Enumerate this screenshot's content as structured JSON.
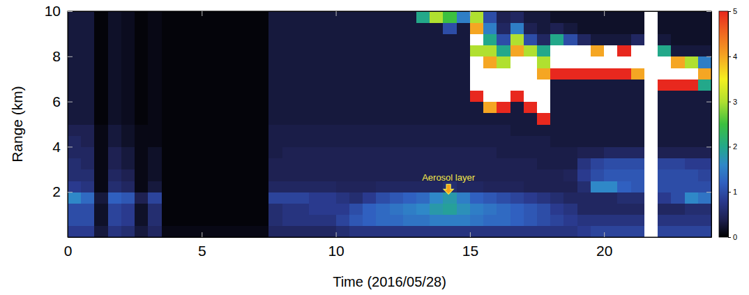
{
  "chart_data": {
    "type": "heatmap",
    "xlabel": "Time (2016/05/28)",
    "ylabel": "Range (km)",
    "xlim": [
      0,
      24
    ],
    "xticks": [
      0,
      5,
      10,
      15,
      20
    ],
    "ylim": [
      0,
      10
    ],
    "yticks": [
      2,
      4,
      6,
      8,
      10
    ],
    "colorbar": {
      "range": [
        0,
        5
      ],
      "ticks": [
        0,
        1,
        2,
        3,
        4,
        5
      ]
    },
    "annotations": [
      {
        "text": "Aerosol layer",
        "x": 14.2,
        "y": 1.9
      }
    ],
    "x": [
      0.25,
      0.75,
      1.25,
      1.75,
      2.25,
      2.75,
      3.25,
      3.75,
      4.25,
      4.75,
      5.25,
      5.75,
      6.25,
      6.75,
      7.25,
      7.75,
      8.25,
      8.75,
      9.25,
      9.75,
      10.25,
      10.75,
      11.25,
      11.75,
      12.25,
      12.75,
      13.25,
      13.75,
      14.25,
      14.75,
      15.25,
      15.75,
      16.25,
      16.75,
      17.25,
      17.75,
      18.25,
      18.75,
      19.25,
      19.75,
      20.25,
      20.75,
      21.25,
      21.75,
      22.25,
      22.75,
      23.25,
      23.75
    ],
    "y": [
      0.25,
      0.75,
      1.25,
      1.75,
      2.25,
      2.75,
      3.25,
      3.75,
      4.25,
      4.75,
      5.25,
      5.75,
      6.25,
      6.75,
      7.25,
      7.75,
      8.25,
      8.75,
      9.25,
      9.75
    ],
    "z": [
      [
        0.8,
        1.0,
        1.0,
        1.6,
        0.8,
        0.6,
        0.6,
        0.5,
        0.5,
        0.4,
        0.3,
        0.3,
        0.3,
        0.3,
        0.3,
        0.3,
        0.3,
        0.3,
        0.3,
        0.3
      ],
      [
        0.8,
        1.0,
        1.0,
        1.3,
        0.7,
        0.6,
        0.5,
        0.5,
        0.4,
        0.4,
        0.3,
        0.3,
        0.3,
        0.3,
        0.3,
        0.3,
        0.3,
        0.3,
        0.3,
        0.3
      ],
      [
        0.3,
        0.2,
        0.2,
        0.3,
        0.1,
        0.1,
        0.1,
        0.1,
        0.1,
        0.1,
        0.05,
        0.05,
        0.05,
        0.05,
        0.05,
        0.05,
        0.05,
        0.05,
        0.05,
        0.05
      ],
      [
        0.7,
        0.9,
        0.9,
        1.2,
        0.6,
        0.5,
        0.4,
        0.4,
        0.3,
        0.3,
        0.2,
        0.2,
        0.2,
        0.2,
        0.2,
        0.2,
        0.2,
        0.2,
        0.2,
        0.2
      ],
      [
        0.6,
        0.8,
        0.8,
        1.1,
        0.5,
        0.4,
        0.3,
        0.3,
        0.2,
        0.2,
        0.15,
        0.15,
        0.15,
        0.15,
        0.15,
        0.15,
        0.15,
        0.15,
        0.15,
        0.15
      ],
      [
        0.3,
        0.2,
        0.2,
        0.4,
        0.1,
        0.1,
        0.1,
        0.1,
        0.1,
        0.1,
        0.05,
        0.05,
        0.05,
        0.05,
        0.05,
        0.05,
        0.05,
        0.05,
        0.05,
        0.05
      ],
      [
        0.5,
        0.6,
        0.6,
        0.9,
        0.3,
        0.2,
        0.2,
        0.2,
        0.1,
        0.1,
        0.1,
        0.1,
        0.1,
        0.1,
        0.1,
        0.1,
        0.1,
        0.1,
        0.1,
        0.1
      ],
      [
        0.1,
        0.05,
        0.05,
        0.05,
        0.05,
        0.05,
        0.05,
        0.05,
        0.05,
        0.05,
        0.05,
        0.05,
        0.05,
        0.05,
        0.05,
        0.05,
        0.05,
        0.05,
        0.05,
        0.05
      ],
      [
        0.1,
        0.05,
        0.05,
        0.05,
        0.05,
        0.05,
        0.05,
        0.05,
        0.05,
        0.05,
        0.05,
        0.05,
        0.05,
        0.05,
        0.05,
        0.05,
        0.05,
        0.05,
        0.05,
        0.05
      ],
      [
        0.1,
        0.05,
        0.05,
        0.05,
        0.05,
        0.05,
        0.05,
        0.05,
        0.05,
        0.05,
        0.05,
        0.05,
        0.05,
        0.05,
        0.05,
        0.05,
        0.05,
        0.05,
        0.05,
        0.05
      ],
      [
        0.1,
        0.05,
        0.05,
        0.05,
        0.05,
        0.05,
        0.05,
        0.05,
        0.05,
        0.05,
        0.05,
        0.05,
        0.05,
        0.05,
        0.05,
        0.05,
        0.05,
        0.05,
        0.05,
        0.05
      ],
      [
        0.1,
        0.05,
        0.05,
        0.05,
        0.05,
        0.05,
        0.05,
        0.05,
        0.05,
        0.05,
        0.05,
        0.05,
        0.05,
        0.05,
        0.05,
        0.05,
        0.05,
        0.05,
        0.05,
        0.05
      ],
      [
        0.1,
        0.05,
        0.05,
        0.05,
        0.05,
        0.05,
        0.05,
        0.05,
        0.05,
        0.05,
        0.05,
        0.05,
        0.05,
        0.05,
        0.05,
        0.05,
        0.05,
        0.05,
        0.05,
        0.05
      ],
      [
        0.1,
        0.05,
        0.05,
        0.05,
        0.05,
        0.05,
        0.05,
        0.05,
        0.05,
        0.05,
        0.05,
        0.05,
        0.05,
        0.05,
        0.05,
        0.05,
        0.05,
        0.05,
        0.05,
        0.05
      ],
      [
        0.1,
        0.05,
        0.05,
        0.05,
        0.05,
        0.05,
        0.05,
        0.05,
        0.05,
        0.05,
        0.05,
        0.05,
        0.05,
        0.05,
        0.05,
        0.05,
        0.05,
        0.05,
        0.05,
        0.05
      ],
      [
        0.5,
        0.6,
        0.6,
        0.9,
        0.5,
        0.4,
        0.4,
        0.35,
        0.35,
        0.35,
        0.3,
        0.3,
        0.3,
        0.3,
        0.3,
        0.3,
        0.3,
        0.3,
        0.3,
        0.3
      ],
      [
        0.5,
        0.7,
        0.7,
        0.9,
        0.5,
        0.4,
        0.4,
        0.4,
        0.35,
        0.35,
        0.3,
        0.3,
        0.3,
        0.3,
        0.3,
        0.3,
        0.3,
        0.3,
        0.3,
        0.3
      ],
      [
        0.5,
        0.7,
        0.7,
        0.9,
        0.5,
        0.4,
        0.4,
        0.4,
        0.35,
        0.35,
        0.3,
        0.3,
        0.3,
        0.3,
        0.3,
        0.3,
        0.3,
        0.3,
        0.3,
        0.3
      ],
      [
        0.5,
        0.7,
        0.8,
        0.8,
        0.5,
        0.4,
        0.4,
        0.4,
        0.35,
        0.35,
        0.3,
        0.3,
        0.3,
        0.3,
        0.3,
        0.3,
        0.3,
        0.3,
        0.3,
        0.3
      ],
      [
        0.5,
        0.7,
        0.8,
        0.8,
        0.5,
        0.4,
        0.4,
        0.4,
        0.35,
        0.35,
        0.3,
        0.3,
        0.3,
        0.3,
        0.3,
        0.3,
        0.3,
        0.3,
        0.3,
        0.3
      ],
      [
        0.6,
        0.9,
        0.8,
        0.7,
        0.45,
        0.4,
        0.4,
        0.4,
        0.35,
        0.35,
        0.3,
        0.3,
        0.3,
        0.3,
        0.3,
        0.3,
        0.3,
        0.3,
        0.3,
        0.3
      ],
      [
        0.7,
        1.1,
        1.0,
        0.6,
        0.45,
        0.4,
        0.4,
        0.4,
        0.35,
        0.35,
        0.3,
        0.3,
        0.3,
        0.3,
        0.3,
        0.3,
        0.3,
        0.3,
        0.3,
        0.3
      ],
      [
        0.7,
        1.2,
        1.2,
        0.8,
        0.45,
        0.4,
        0.4,
        0.4,
        0.35,
        0.35,
        0.3,
        0.3,
        0.3,
        0.3,
        0.3,
        0.3,
        0.3,
        0.3,
        0.3,
        0.3
      ],
      [
        0.7,
        1.3,
        1.3,
        1.0,
        0.5,
        0.4,
        0.4,
        0.4,
        0.35,
        0.35,
        0.3,
        0.3,
        0.3,
        0.3,
        0.3,
        0.3,
        0.3,
        0.3,
        0.3,
        0.3
      ],
      [
        0.7,
        1.3,
        1.4,
        1.1,
        0.5,
        0.4,
        0.4,
        0.4,
        0.35,
        0.35,
        0.3,
        0.3,
        0.3,
        0.3,
        0.3,
        0.3,
        0.3,
        0.3,
        0.3,
        0.3
      ],
      [
        0.7,
        1.4,
        1.5,
        1.2,
        0.5,
        0.4,
        0.4,
        0.4,
        0.35,
        0.35,
        0.3,
        0.3,
        0.3,
        0.3,
        0.3,
        0.3,
        0.3,
        0.3,
        0.3,
        0.3
      ],
      [
        0.7,
        1.4,
        1.6,
        1.3,
        0.5,
        0.4,
        0.4,
        0.4,
        0.35,
        0.35,
        0.3,
        0.3,
        0.3,
        0.3,
        0.3,
        0.3,
        0.3,
        0.3,
        0.3,
        2.0
      ],
      [
        0.7,
        1.5,
        1.8,
        1.6,
        0.5,
        0.4,
        0.4,
        0.4,
        0.35,
        0.35,
        0.3,
        0.3,
        0.3,
        0.3,
        0.3,
        0.3,
        0.3,
        0.3,
        0.3,
        3.0
      ],
      [
        0.7,
        1.5,
        1.9,
        1.8,
        0.6,
        0.4,
        0.4,
        0.4,
        0.35,
        0.35,
        0.3,
        0.3,
        0.3,
        0.3,
        0.3,
        0.3,
        0.3,
        0.3,
        1.0,
        2.5
      ],
      [
        0.7,
        1.5,
        1.7,
        1.5,
        0.5,
        0.4,
        0.4,
        0.4,
        0.35,
        0.35,
        0.3,
        0.3,
        0.3,
        0.3,
        0.3,
        0.3,
        0.3,
        0.3,
        0.3,
        1.5
      ],
      [
        0.7,
        1.4,
        1.5,
        1.2,
        0.5,
        0.4,
        0.4,
        0.4,
        0.35,
        0.35,
        0.3,
        0.3,
        5,
        6,
        6,
        6,
        3,
        6,
        4,
        3
      ],
      [
        0.7,
        1.3,
        1.4,
        1.1,
        0.45,
        0.4,
        0.4,
        0.4,
        0.35,
        0.35,
        0.3,
        4,
        6,
        6,
        6,
        4,
        3,
        2,
        1.5,
        1
      ],
      [
        0.7,
        1.3,
        1.3,
        1.0,
        0.45,
        0.4,
        0.4,
        0.35,
        0.35,
        0.35,
        0.3,
        5,
        6,
        6,
        6,
        3,
        2,
        1,
        0.5,
        0.4
      ],
      [
        0.7,
        1.2,
        1.2,
        0.9,
        0.45,
        0.4,
        0.4,
        0.35,
        0.35,
        0.3,
        0.3,
        0.3,
        5,
        6,
        6,
        6,
        4,
        3,
        1.5,
        0.5
      ],
      [
        0.7,
        1.1,
        1.1,
        0.8,
        0.4,
        0.4,
        0.4,
        0.35,
        0.35,
        0.3,
        0.3,
        5,
        6,
        6,
        6,
        6,
        3,
        1,
        0.4,
        0.3
      ],
      [
        0.7,
        1.0,
        1.0,
        0.7,
        0.4,
        0.4,
        0.35,
        0.35,
        0.35,
        0.3,
        5,
        6,
        6,
        6,
        4,
        3,
        2,
        0.5,
        0.3,
        0.3
      ],
      [
        0.7,
        0.9,
        0.8,
        0.6,
        0.4,
        0.4,
        0.35,
        0.35,
        0.3,
        0.3,
        0.3,
        0.3,
        0.3,
        0.3,
        5,
        6,
        6,
        2,
        0.4,
        0.2
      ],
      [
        0.7,
        0.8,
        0.7,
        0.5,
        0.4,
        0.45,
        0.35,
        0.35,
        0.3,
        0.3,
        0.3,
        0.3,
        0.3,
        0.3,
        5,
        6,
        6,
        1,
        0.3,
        0.2
      ],
      [
        0.8,
        0.7,
        0.5,
        0.5,
        0.6,
        0.8,
        0.7,
        0.4,
        0.3,
        0.3,
        0.3,
        0.3,
        0.3,
        0.3,
        5,
        6,
        6,
        0.5,
        0.2,
        0.2
      ],
      [
        0.9,
        0.7,
        0.5,
        0.5,
        1.6,
        1.0,
        0.9,
        0.4,
        0.3,
        0.3,
        0.3,
        0.3,
        0.3,
        0.3,
        5,
        6,
        4,
        0.3,
        0.2,
        0.2
      ],
      [
        0.9,
        0.7,
        0.5,
        0.5,
        1.6,
        1.1,
        1.0,
        0.5,
        0.3,
        0.3,
        0.3,
        0.3,
        0.3,
        0.3,
        5,
        6,
        6,
        0.3,
        0.2,
        0.2
      ],
      [
        0.9,
        0.7,
        0.5,
        0.6,
        1.2,
        1.1,
        1.0,
        0.5,
        0.3,
        0.3,
        0.3,
        0.3,
        0.3,
        0.3,
        5,
        6,
        5,
        0.3,
        0.2,
        0.2
      ],
      [
        0.9,
        0.7,
        0.5,
        0.6,
        1.1,
        1.1,
        1.0,
        0.5,
        0.3,
        0.3,
        0.3,
        0.3,
        0.3,
        0.3,
        4,
        6,
        6,
        0.5,
        0.2,
        0.2
      ],
      [
        null,
        null,
        null,
        null,
        null,
        null,
        null,
        null,
        null,
        null,
        null,
        null,
        null,
        null,
        null,
        null,
        null,
        null,
        null,
        null
      ],
      [
        0.9,
        0.7,
        0.5,
        0.8,
        1.0,
        1.0,
        0.9,
        0.4,
        0.3,
        0.3,
        0.3,
        0.3,
        0.3,
        5,
        6,
        6,
        2,
        0.3,
        0.2,
        0.2
      ],
      [
        0.9,
        0.7,
        0.5,
        1.0,
        1.0,
        1.0,
        0.9,
        0.4,
        0.3,
        0.3,
        0.3,
        0.3,
        0.3,
        5,
        6,
        4,
        0.3,
        0.2,
        0.2,
        0.2
      ],
      [
        0.9,
        0.7,
        0.6,
        1.6,
        1.0,
        1.0,
        0.8,
        0.4,
        0.3,
        0.3,
        0.3,
        0.3,
        0.3,
        5,
        6,
        3,
        0.3,
        0.2,
        0.2,
        0.2
      ],
      [
        0.9,
        0.7,
        0.6,
        1.4,
        1.0,
        0.9,
        0.8,
        0.4,
        0.3,
        0.3,
        0.3,
        0.3,
        0.3,
        2,
        4,
        1.5,
        0.3,
        0.2,
        0.2,
        0.2
      ]
    ]
  }
}
